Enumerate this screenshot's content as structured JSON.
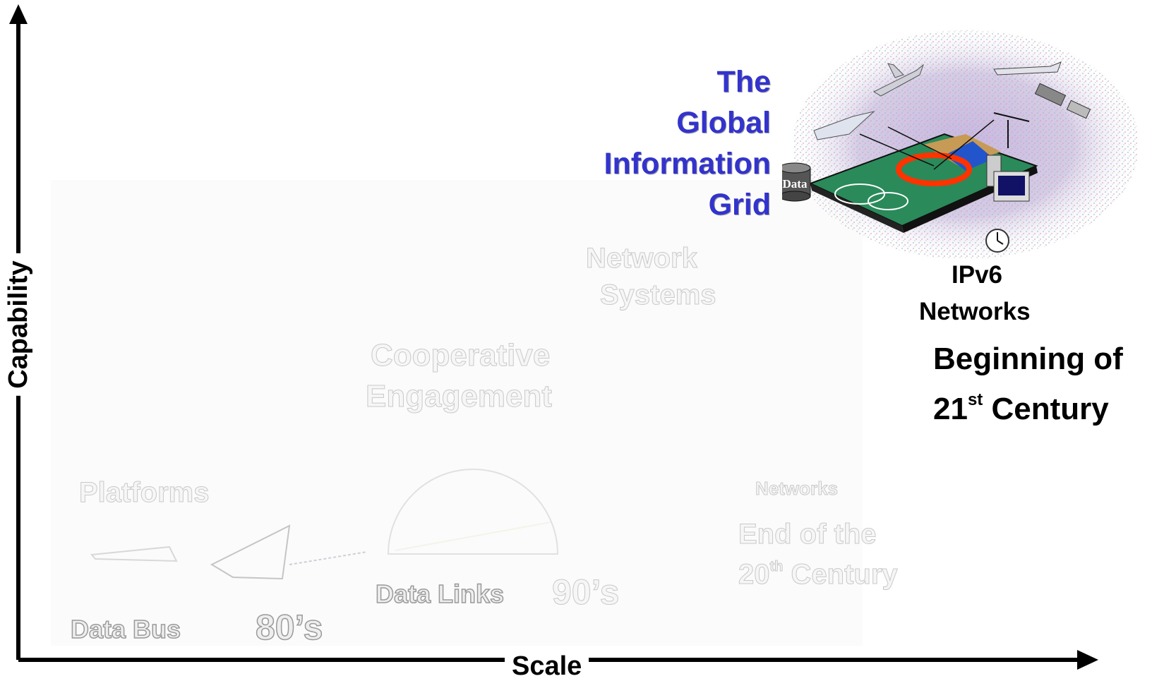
{
  "axes": {
    "x_label": "Scale",
    "y_label": "Capability"
  },
  "grid": {
    "title_lines": [
      "The",
      "Global",
      "Information",
      "Grid"
    ],
    "data_label": "Data",
    "networks_line1": "IPv6",
    "networks_line2": "Networks",
    "era_line1": "Beginning of",
    "era_line2_prefix": "21",
    "era_line2_sup": "st",
    "era_line2_suffix": " Century"
  },
  "faded_stages": {
    "platforms": "Platforms",
    "data_bus": "Data Bus",
    "eighties": "80’s",
    "cooperative_line1": "Cooperative",
    "cooperative_line2": "Engagement",
    "data_links": "Data Links",
    "nineties": "90’s",
    "network_fragment_line1": "Network",
    "network_fragment_line2": "Systems",
    "networks_fragment": "Networks",
    "end_line1": "End of the",
    "end_line2_prefix": "20",
    "end_line2_sup": "th",
    "end_line2_suffix": " Century"
  },
  "colors": {
    "title_blue": "#3333cc",
    "axis": "#000000",
    "halo_red": "#ff3300"
  }
}
